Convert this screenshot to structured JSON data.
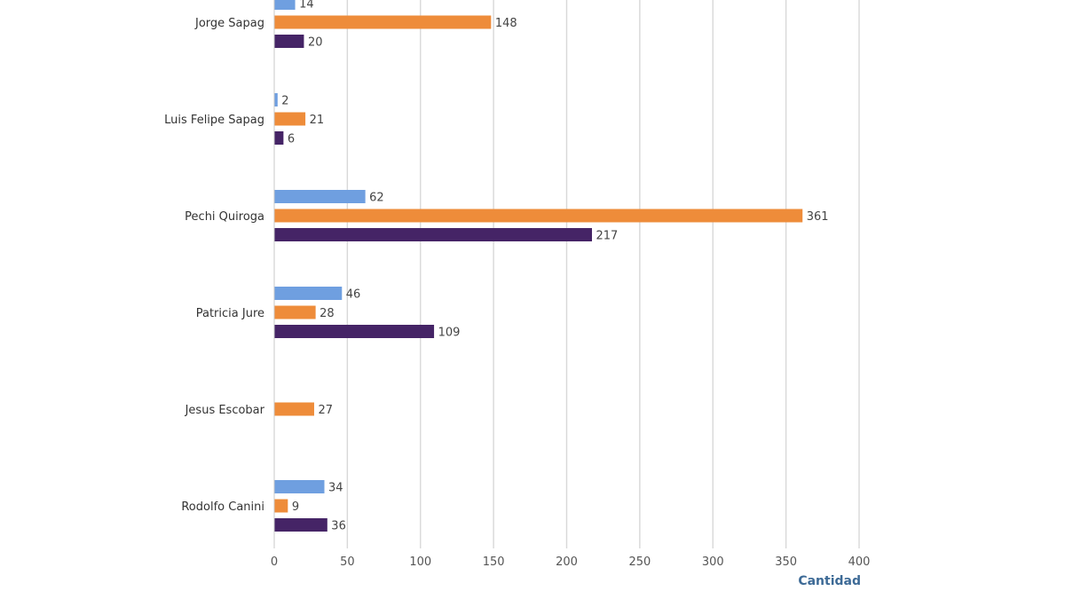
{
  "chart_data": {
    "type": "bar",
    "orientation": "horizontal",
    "categories": [
      "Jorge Sapag",
      "Luis Felipe Sapag",
      "Pechi Quiroga",
      "Patricia Jure",
      "Jesus Escobar",
      "Rodolfo Canini"
    ],
    "series": [
      {
        "color": "#6f9fe0",
        "values": [
          14,
          2,
          62,
          46,
          null,
          34
        ]
      },
      {
        "color": "#ee8c3a",
        "values": [
          148,
          21,
          361,
          28,
          27,
          9
        ]
      },
      {
        "color": "#452466",
        "values": [
          20,
          6,
          217,
          109,
          null,
          36
        ]
      }
    ],
    "xlabel": "Cantidad",
    "xlim": [
      0,
      400
    ],
    "xticks": [
      0,
      50,
      100,
      150,
      200,
      250,
      300,
      350,
      400
    ],
    "grid": true,
    "title": ""
  }
}
